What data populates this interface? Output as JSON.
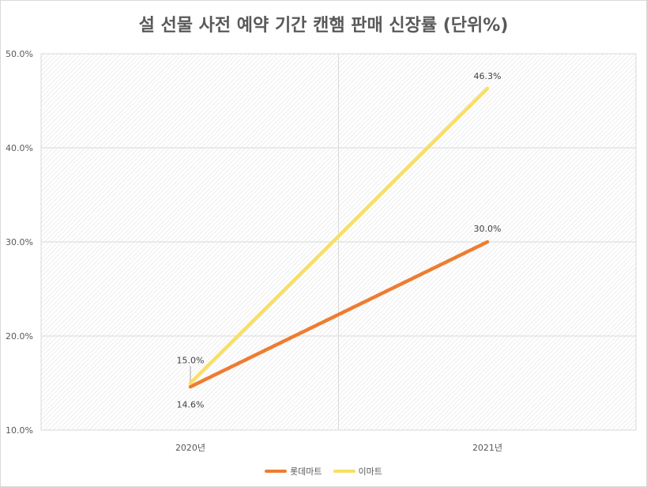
{
  "chart_data": {
    "type": "line",
    "title": "설 선물 사전 예약 기간 캔햄 판매 신장률 (단위%)",
    "categories": [
      "2020년",
      "2021년"
    ],
    "ylim": [
      10.0,
      50.0
    ],
    "yticks": [
      "10.0%",
      "20.0%",
      "30.0%",
      "40.0%",
      "50.0%"
    ],
    "ytick_values": [
      10,
      20,
      30,
      40,
      50
    ],
    "grid": true,
    "legend_position": "bottom",
    "series": [
      {
        "name": "롯데마트",
        "color": "#ED7D31",
        "values": [
          14.6,
          30.0
        ],
        "labels": [
          "14.6%",
          "30.0%"
        ]
      },
      {
        "name": "이마트",
        "color": "#F8DF65",
        "values": [
          15.0,
          46.3
        ],
        "labels": [
          "15.0%",
          "46.3%"
        ]
      }
    ]
  }
}
